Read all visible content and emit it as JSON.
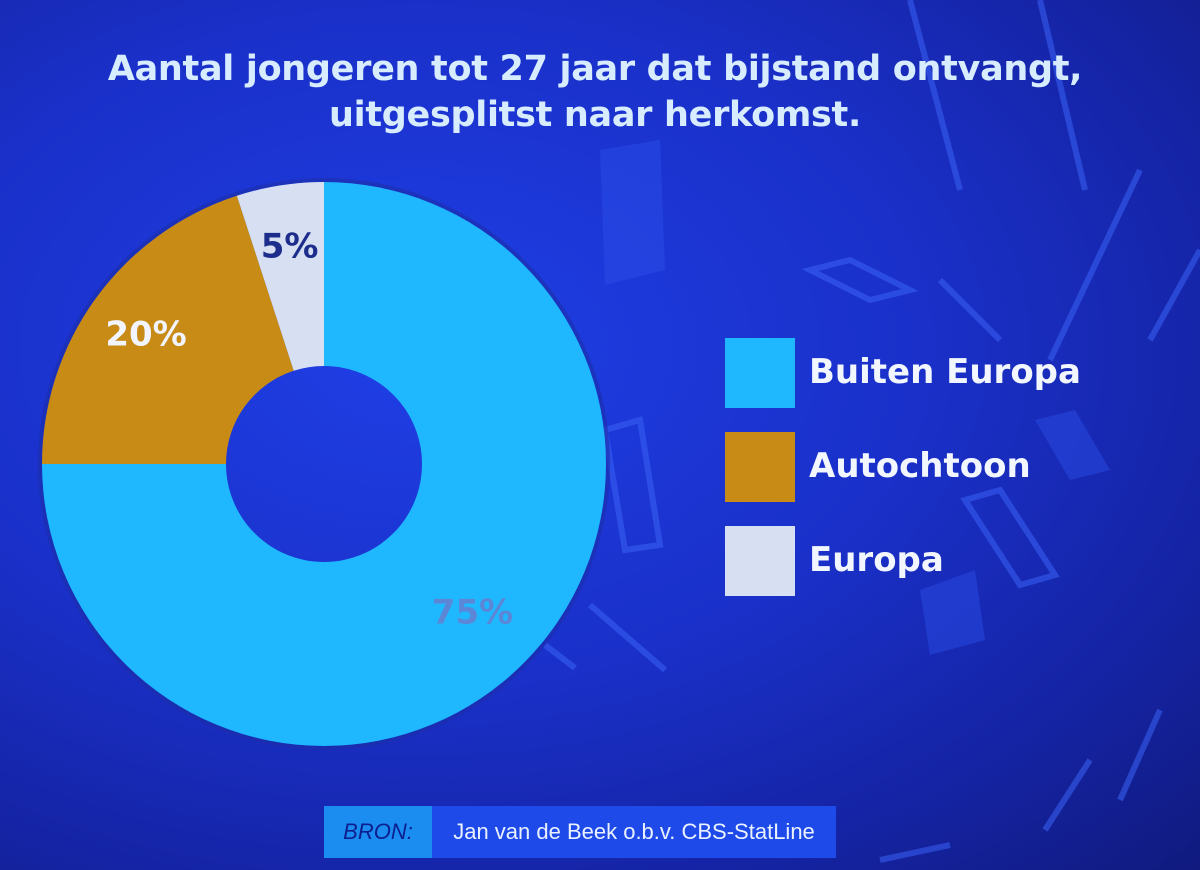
{
  "title": {
    "line1": "Aantal jongeren tot 27 jaar dat bijstand ontvangt,",
    "line2": "uitgesplitst naar herkomst."
  },
  "chart_data": {
    "type": "pie",
    "donut": true,
    "start_angle_deg": 0,
    "direction": "clockwise",
    "categories": [
      "Buiten Europa",
      "Autochtoon",
      "Europa"
    ],
    "values": [
      75,
      20,
      5
    ],
    "unit": "%",
    "labels": [
      "75%",
      "20%",
      "5%"
    ],
    "colors": [
      "#1fb8ff",
      "#c88b16",
      "#d6e0f2"
    ],
    "label_colors": [
      "#5c86d6",
      "#f2f4ff",
      "#1c2d8c"
    ],
    "legend_placement": "right"
  },
  "legend": {
    "items": [
      {
        "label": "Buiten Europa",
        "color": "#1fb8ff"
      },
      {
        "label": "Autochtoon",
        "color": "#c88b16"
      },
      {
        "label": "Europa",
        "color": "#d6e0f2"
      }
    ]
  },
  "source": {
    "key": "BRON:",
    "value": "Jan van de Beek o.b.v. CBS-StatLine"
  }
}
